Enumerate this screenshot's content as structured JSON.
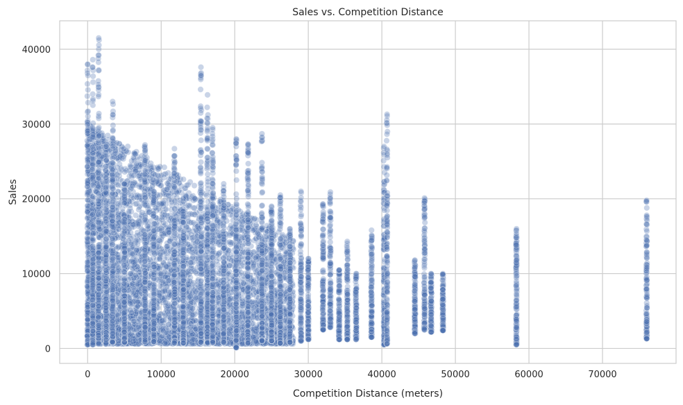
{
  "chart_data": {
    "type": "scatter",
    "title": "Sales vs. Competition Distance",
    "xlabel": "Competition Distance (meters)",
    "ylabel": "Sales",
    "xlim": [
      -3800,
      80000
    ],
    "ylim": [
      -2000,
      43800
    ],
    "xticks": [
      0,
      10000,
      20000,
      30000,
      40000,
      50000,
      60000,
      70000
    ],
    "yticks": [
      0,
      10000,
      20000,
      30000,
      40000
    ],
    "grid": true,
    "point_color": "#4C72B0",
    "point_opacity": 0.3,
    "series": [
      {
        "columns": [
          {
            "x": 0,
            "min": 500,
            "max": 38000
          },
          {
            "x": 700,
            "min": 500,
            "max": 38600
          },
          {
            "x": 1500,
            "min": 600,
            "max": 41500
          },
          {
            "x": 2500,
            "min": 600,
            "max": 27000
          },
          {
            "x": 3400,
            "min": 800,
            "max": 33000
          },
          {
            "x": 5000,
            "min": 800,
            "max": 22000
          },
          {
            "x": 7800,
            "min": 900,
            "max": 27200
          },
          {
            "x": 9000,
            "min": 900,
            "max": 21000
          },
          {
            "x": 11800,
            "min": 700,
            "max": 26700
          },
          {
            "x": 13000,
            "min": 700,
            "max": 20000
          },
          {
            "x": 15400,
            "min": 800,
            "max": 37600
          },
          {
            "x": 16300,
            "min": 700,
            "max": 33900
          },
          {
            "x": 17000,
            "min": 800,
            "max": 29500
          },
          {
            "x": 18500,
            "min": 800,
            "max": 22000
          },
          {
            "x": 20200,
            "min": 100,
            "max": 28000
          },
          {
            "x": 21800,
            "min": 700,
            "max": 27300
          },
          {
            "x": 23700,
            "min": 1000,
            "max": 28700
          },
          {
            "x": 25000,
            "min": 1000,
            "max": 19000
          },
          {
            "x": 26200,
            "min": 700,
            "max": 20500
          },
          {
            "x": 27500,
            "min": 800,
            "max": 16000
          },
          {
            "x": 29000,
            "min": 1000,
            "max": 21000
          },
          {
            "x": 30000,
            "min": 1200,
            "max": 12000
          },
          {
            "x": 32000,
            "min": 2500,
            "max": 19300
          },
          {
            "x": 33000,
            "min": 2800,
            "max": 20900
          },
          {
            "x": 34200,
            "min": 1200,
            "max": 10500
          },
          {
            "x": 35300,
            "min": 1200,
            "max": 14300
          },
          {
            "x": 36500,
            "min": 1200,
            "max": 10000
          },
          {
            "x": 38600,
            "min": 1500,
            "max": 15800
          },
          {
            "x": 40300,
            "min": 500,
            "max": 27000
          },
          {
            "x": 40700,
            "min": 600,
            "max": 31300
          },
          {
            "x": 44500,
            "min": 2000,
            "max": 11800
          },
          {
            "x": 45800,
            "min": 2500,
            "max": 20100
          },
          {
            "x": 46700,
            "min": 2200,
            "max": 10000
          },
          {
            "x": 48300,
            "min": 2400,
            "max": 10000
          },
          {
            "x": 58300,
            "min": 500,
            "max": 16000
          },
          {
            "x": 76000,
            "min": 1300,
            "max": 19800
          }
        ]
      }
    ]
  }
}
